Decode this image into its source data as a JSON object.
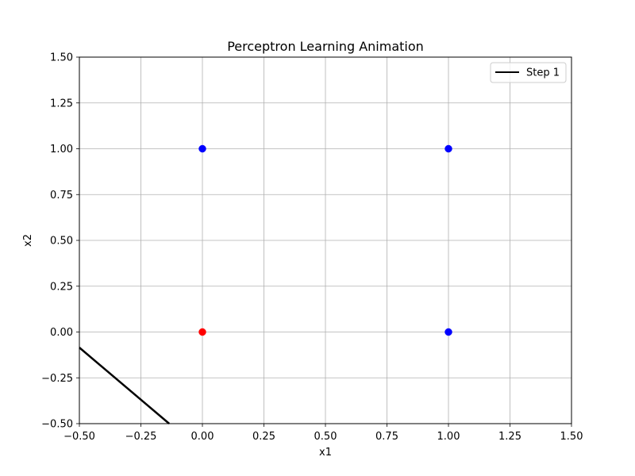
{
  "chart_data": {
    "type": "scatter",
    "title": "Perceptron Learning Animation",
    "xlabel": "x1",
    "ylabel": "x2",
    "xlim": [
      -0.5,
      1.5
    ],
    "ylim": [
      -0.5,
      1.5
    ],
    "xticks": [
      "−0.50",
      "−0.25",
      "0.00",
      "0.25",
      "0.50",
      "0.75",
      "1.00",
      "1.25",
      "1.50"
    ],
    "xtick_values": [
      -0.5,
      -0.25,
      0,
      0.25,
      0.5,
      0.75,
      1.0,
      1.25,
      1.5
    ],
    "yticks": [
      "−0.50",
      "−0.25",
      "0.00",
      "0.25",
      "0.50",
      "0.75",
      "1.00",
      "1.25",
      "1.50"
    ],
    "ytick_values": [
      -0.5,
      -0.25,
      0,
      0.25,
      0.5,
      0.75,
      1.0,
      1.25,
      1.5
    ],
    "grid": true,
    "legend_position": "top-right",
    "points": [
      {
        "x": 0,
        "y": 0,
        "color": "#ff0000"
      },
      {
        "x": 0,
        "y": 1,
        "color": "#0000ff"
      },
      {
        "x": 1,
        "y": 0,
        "color": "#0000ff"
      },
      {
        "x": 1,
        "y": 1,
        "color": "#0000ff"
      }
    ],
    "series": [
      {
        "name": "Step 1",
        "color": "#000000",
        "x": [
          -0.5,
          -0.135
        ],
        "y": [
          -0.085,
          -0.5
        ]
      }
    ]
  }
}
